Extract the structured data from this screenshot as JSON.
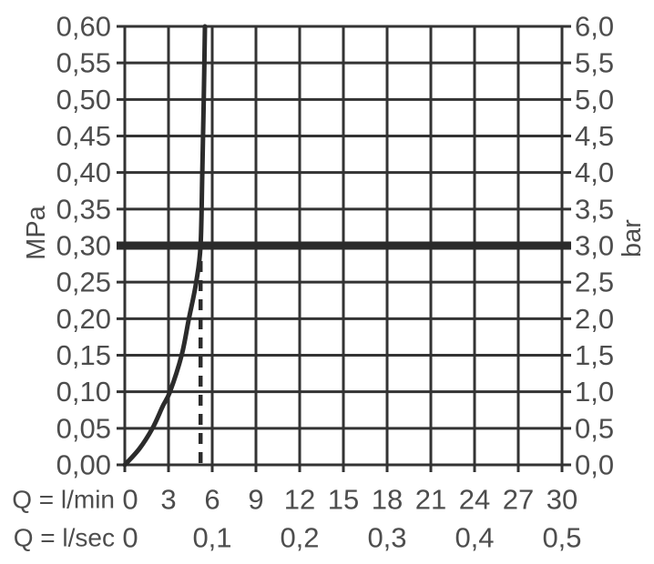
{
  "figure": {
    "y_left_unit": "MPa",
    "y_right_unit": "bar",
    "x_row1_label": "Q = l/min",
    "x_row2_label": "Q = l/sec"
  },
  "colors": {
    "background": "#ffffff",
    "grid": "#333333",
    "text": "#4d4d4d",
    "curve": "#2b2b2b",
    "reference_line": "#2b2b2b",
    "marker_line": "#2b2b2b"
  },
  "chart_data": {
    "type": "line",
    "x_axis": {
      "min": 0,
      "max": 30,
      "grid_step": 3,
      "row1_unit": "Q = l/min",
      "row2_unit": "Q = l/sec",
      "lmin_ticks": [
        {
          "x": 0,
          "text": "0"
        },
        {
          "x": 3,
          "text": "3"
        },
        {
          "x": 6,
          "text": "6"
        },
        {
          "x": 9,
          "text": "9"
        },
        {
          "x": 12,
          "text": "12"
        },
        {
          "x": 15,
          "text": "15"
        },
        {
          "x": 18,
          "text": "18"
        },
        {
          "x": 21,
          "text": "21"
        },
        {
          "x": 24,
          "text": "24"
        },
        {
          "x": 27,
          "text": "27"
        },
        {
          "x": 30,
          "text": "30"
        }
      ],
      "lsec_ticks": [
        {
          "x": 0,
          "text": "0"
        },
        {
          "x": 6,
          "text": "0,1"
        },
        {
          "x": 12,
          "text": "0,2"
        },
        {
          "x": 18,
          "text": "0,3"
        },
        {
          "x": 24,
          "text": "0,4"
        },
        {
          "x": 30,
          "text": "0,5"
        }
      ]
    },
    "y_axis_left": {
      "unit": "MPa",
      "min": 0,
      "max": 0.6,
      "grid_step": 0.05,
      "ticks": [
        {
          "y": 0.6,
          "text": "0,60"
        },
        {
          "y": 0.55,
          "text": "0,55"
        },
        {
          "y": 0.5,
          "text": "0,50"
        },
        {
          "y": 0.45,
          "text": "0,45"
        },
        {
          "y": 0.4,
          "text": "0,40"
        },
        {
          "y": 0.35,
          "text": "0,35"
        },
        {
          "y": 0.3,
          "text": "0,30"
        },
        {
          "y": 0.25,
          "text": "0,25"
        },
        {
          "y": 0.2,
          "text": "0,20"
        },
        {
          "y": 0.15,
          "text": "0,15"
        },
        {
          "y": 0.1,
          "text": "0,10"
        },
        {
          "y": 0.05,
          "text": "0,05"
        },
        {
          "y": 0.0,
          "text": "0,00"
        }
      ]
    },
    "y_axis_right": {
      "unit": "bar",
      "min": 0,
      "max": 6,
      "ticks": [
        {
          "at_mpa": 0.6,
          "text": "6,0"
        },
        {
          "at_mpa": 0.55,
          "text": "5,5"
        },
        {
          "at_mpa": 0.5,
          "text": "5,0"
        },
        {
          "at_mpa": 0.45,
          "text": "4,5"
        },
        {
          "at_mpa": 0.4,
          "text": "4,0"
        },
        {
          "at_mpa": 0.35,
          "text": "3,5"
        },
        {
          "at_mpa": 0.3,
          "text": "3,0"
        },
        {
          "at_mpa": 0.25,
          "text": "2,5"
        },
        {
          "at_mpa": 0.2,
          "text": "2,0"
        },
        {
          "at_mpa": 0.15,
          "text": "1,5"
        },
        {
          "at_mpa": 0.1,
          "text": "1,0"
        },
        {
          "at_mpa": 0.05,
          "text": "0,5"
        },
        {
          "at_mpa": 0.0,
          "text": "0,0"
        }
      ]
    },
    "series": [
      {
        "name": "flow-curve",
        "points_lmin_mpa": [
          [
            0,
            0
          ],
          [
            1.0,
            0.022
          ],
          [
            1.9,
            0.05
          ],
          [
            2.6,
            0.08
          ],
          [
            3.1,
            0.1
          ],
          [
            3.9,
            0.15
          ],
          [
            4.4,
            0.2
          ],
          [
            4.9,
            0.25
          ],
          [
            5.2,
            0.3
          ],
          [
            5.32,
            0.4
          ],
          [
            5.42,
            0.5
          ],
          [
            5.5,
            0.6
          ]
        ]
      }
    ],
    "reference_line_mpa": 0.3,
    "dashed_marker": {
      "x_lmin": 5.2,
      "from_mpa": 0,
      "to_mpa": 0.285
    },
    "grid": true,
    "legend": false
  }
}
